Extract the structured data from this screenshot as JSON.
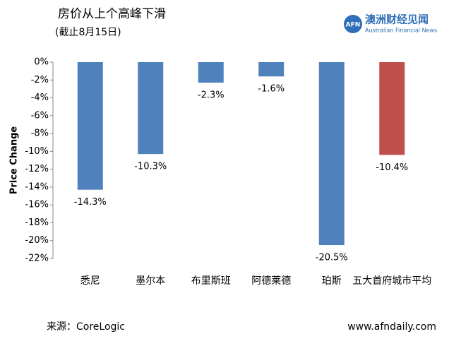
{
  "chart_data": {
    "type": "bar",
    "title": "房价从上个高峰下滑",
    "subtitle": "(截止8月15日)",
    "y_label": "Price Change",
    "categories": [
      "悉尼",
      "墨尔本",
      "布里斯班",
      "阿德莱德",
      "珀斯",
      "五大首府城市平均"
    ],
    "values": [
      -14.3,
      -10.3,
      -2.3,
      -1.6,
      -20.5,
      -10.4
    ],
    "value_labels": [
      "-14.3%",
      "-10.3%",
      "-2.3%",
      "-1.6%",
      "-20.5%",
      "-10.4%"
    ],
    "colors": [
      "#4f81bd",
      "#4f81bd",
      "#4f81bd",
      "#4f81bd",
      "#4f81bd",
      "#c0504d"
    ],
    "ylim": [
      -22,
      0
    ],
    "yticks": [
      {
        "value": 0,
        "label": "0%"
      },
      {
        "value": -2,
        "label": "-2%"
      },
      {
        "value": -4,
        "label": "-4%"
      },
      {
        "value": -6,
        "label": "-6%"
      },
      {
        "value": -8,
        "label": "-8%"
      },
      {
        "value": -10,
        "label": "-10%"
      },
      {
        "value": -12,
        "label": "-12%"
      },
      {
        "value": -14,
        "label": "-14%"
      },
      {
        "value": -16,
        "label": "-16%"
      },
      {
        "value": -18,
        "label": "-18%"
      },
      {
        "value": -20,
        "label": "-20%"
      },
      {
        "value": -22,
        "label": "-22%"
      }
    ],
    "grid": false
  },
  "logo": {
    "mark": "AFN",
    "name": "澳洲财经见闻",
    "english": "Australian Financial News"
  },
  "footer": {
    "source": "来源：CoreLogic",
    "website": "www.afndaily.com"
  }
}
